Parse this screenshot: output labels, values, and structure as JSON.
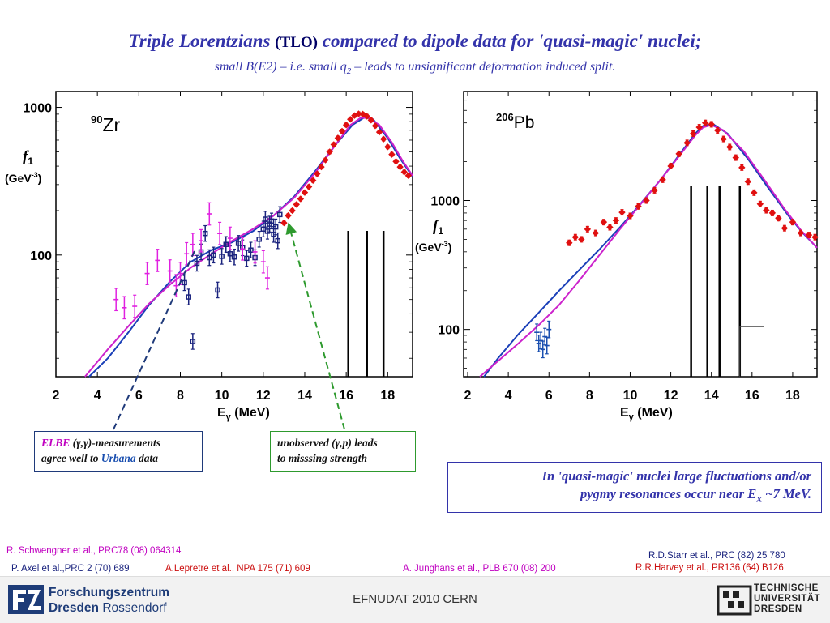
{
  "title": {
    "part1": "Triple Lorentzians",
    "tlo": "(TLO)",
    "part2": "compared to dipole data for 'quasi-magic' nuclei;",
    "subtitle_a": "small B(E2) – i.e. small q",
    "subtitle_sub": "2",
    "subtitle_b": " – leads to unsignificant deformation induced split."
  },
  "annotations": {
    "elbe_a": "ELBE",
    "elbe_b": " (γ,γ)-measurements",
    "elbe_c": "agree well to ",
    "elbe_d": "Urbana",
    "elbe_e": " data",
    "unobs_a": "unobserved (γ,p) leads",
    "unobs_b": "to misssing strength",
    "qm_a": "In 'quasi-magic' nuclei large fluctuations and/or",
    "qm_b": "pygmy resonances occur near E",
    "qm_sub": "x",
    "qm_c": " ~7 MeV."
  },
  "references": {
    "r1": "R. Schwengner et al., PRC78 (08) 064314",
    "r2": "P. Axel et al.,PRC 2 (70) 689",
    "r3": "A.Lepretre et al., NPA 175 (71) 609",
    "r4": "A. Junghans et al., PLB  670 (08) 200",
    "r5": "R.D.Starr et al., PRC (82) 25 780",
    "r6": "R.R.Harvey et al., PR136 (64) B126"
  },
  "footer": {
    "center": "EFNUDAT 2010 CERN",
    "fz_line1": "Forschungszentrum",
    "fz_line2a": "Dresden",
    "fz_line2b": "Rossendorf",
    "tu_line1": "TECHNISCHE",
    "tu_line2": "UNIVERSITÄT",
    "tu_line3": "DRESDEN"
  },
  "colors": {
    "title": "#3333aa",
    "fit_tlo": "#cc22cc",
    "fit_other": "#1a3fb8",
    "elbe_points": "#1a237e",
    "gamma_p_points": "#e01010",
    "axel_points": "#e020e0"
  },
  "chart_data": [
    {
      "type": "scatter",
      "nucleus_sup": "90",
      "nucleus": "Zr",
      "ylabel_main": "f",
      "ylabel_sub": "1",
      "ylabel_unit": "(GeV",
      "ylabel_exp": "-3",
      "ylabel_close": ")",
      "xlabel": "E",
      "xlabel_sub": "γ",
      "xlabel_unit": " (MeV)",
      "xlim": [
        2,
        19.2
      ],
      "ylim": [
        15,
        1280
      ],
      "yscale": "log",
      "xticks": [
        2,
        4,
        6,
        8,
        10,
        12,
        14,
        16,
        18
      ],
      "yticks": [
        100,
        1000
      ],
      "resonance_lines": [
        16.1,
        17.0,
        17.8
      ],
      "series": [
        {
          "key": "elbe",
          "marker": "square",
          "color": "#1a237e",
          "points": [
            [
              8.2,
              65
            ],
            [
              8.4,
              52
            ],
            [
              8.6,
              26
            ],
            [
              8.8,
              88
            ],
            [
              9.0,
              105
            ],
            [
              9.2,
              140
            ],
            [
              9.4,
              96
            ],
            [
              9.6,
              100
            ],
            [
              9.8,
              58
            ],
            [
              10.0,
              98
            ],
            [
              10.2,
              118
            ],
            [
              10.4,
              102
            ],
            [
              10.6,
              97
            ],
            [
              10.8,
              120
            ],
            [
              11.0,
              112
            ],
            [
              11.2,
              95
            ],
            [
              11.4,
              108
            ],
            [
              11.6,
              96
            ],
            [
              11.8,
              128
            ],
            [
              12.0,
              150
            ],
            [
              12.1,
              175
            ],
            [
              12.2,
              145
            ],
            [
              12.3,
              162
            ],
            [
              12.4,
              170
            ],
            [
              12.5,
              138
            ],
            [
              12.6,
              155
            ],
            [
              12.7,
              125
            ],
            [
              12.8,
              188
            ]
          ],
          "err": 0.13
        },
        {
          "key": "axel",
          "marker": "plus",
          "color": "#e020e0",
          "points": [
            [
              4.9,
              50
            ],
            [
              5.3,
              44
            ],
            [
              5.8,
              45
            ],
            [
              6.4,
              75
            ],
            [
              6.9,
              92
            ],
            [
              7.5,
              78
            ],
            [
              7.8,
              62
            ],
            [
              8.0,
              75
            ],
            [
              8.3,
              102
            ],
            [
              8.6,
              118
            ],
            [
              9.0,
              125
            ],
            [
              9.4,
              190
            ],
            [
              9.9,
              140
            ],
            [
              10.4,
              130
            ],
            [
              11.0,
              110
            ],
            [
              11.6,
              105
            ],
            [
              12.0,
              90
            ],
            [
              12.2,
              70
            ]
          ],
          "err": 0.19
        },
        {
          "key": "gammap",
          "marker": "diamond",
          "color": "#e01010",
          "points": [
            [
              13.0,
              165
            ],
            [
              13.2,
              185
            ],
            [
              13.4,
              200
            ],
            [
              13.6,
              220
            ],
            [
              13.8,
              240
            ],
            [
              14.0,
              265
            ],
            [
              14.2,
              290
            ],
            [
              14.4,
              320
            ],
            [
              14.6,
              355
            ],
            [
              14.8,
              395
            ],
            [
              15.0,
              440
            ],
            [
              15.2,
              500
            ],
            [
              15.4,
              560
            ],
            [
              15.6,
              620
            ],
            [
              15.8,
              690
            ],
            [
              16.0,
              760
            ],
            [
              16.2,
              830
            ],
            [
              16.4,
              880
            ],
            [
              16.6,
              905
            ],
            [
              16.8,
              900
            ],
            [
              17.0,
              870
            ],
            [
              17.2,
              820
            ],
            [
              17.4,
              750
            ],
            [
              17.6,
              680
            ],
            [
              17.8,
              610
            ],
            [
              18.0,
              540
            ],
            [
              18.2,
              480
            ],
            [
              18.4,
              430
            ],
            [
              18.6,
              395
            ],
            [
              18.8,
              365
            ],
            [
              19.0,
              345
            ]
          ],
          "err": 0.03
        }
      ],
      "fits": [
        {
          "key": "blue",
          "color": "#1a3fb8",
          "points": [
            [
              3.6,
              15
            ],
            [
              4.5,
              20
            ],
            [
              5.5,
              30
            ],
            [
              6.5,
              46
            ],
            [
              7.5,
              66
            ],
            [
              8.5,
              90
            ],
            [
              9.5,
              108
            ],
            [
              10.5,
              122
            ],
            [
              11.5,
              145
            ],
            [
              12.5,
              185
            ],
            [
              13.5,
              250
            ],
            [
              14.5,
              370
            ],
            [
              15.5,
              560
            ],
            [
              16.3,
              760
            ],
            [
              16.9,
              860
            ],
            [
              17.3,
              830
            ],
            [
              18.0,
              620
            ],
            [
              18.6,
              450
            ],
            [
              19.2,
              340
            ]
          ]
        },
        {
          "key": "magenta",
          "color": "#cc22cc",
          "points": [
            [
              3.4,
              15
            ],
            [
              4.5,
              23
            ],
            [
              5.5,
              33
            ],
            [
              6.5,
              47
            ],
            [
              7.5,
              63
            ],
            [
              8.5,
              82
            ],
            [
              9.5,
              102
            ],
            [
              10.5,
              125
            ],
            [
              11.5,
              150
            ],
            [
              12.5,
              185
            ],
            [
              13.5,
              245
            ],
            [
              14.5,
              360
            ],
            [
              15.5,
              560
            ],
            [
              16.2,
              760
            ],
            [
              16.7,
              850
            ],
            [
              17.1,
              845
            ],
            [
              17.6,
              760
            ],
            [
              18.2,
              580
            ],
            [
              18.7,
              440
            ],
            [
              19.2,
              345
            ]
          ]
        }
      ]
    },
    {
      "type": "scatter",
      "nucleus_sup": "206",
      "nucleus": "Pb",
      "ylabel_main": "f",
      "ylabel_sub": "1",
      "ylabel_unit": "(GeV",
      "ylabel_exp": "-3",
      "ylabel_close": ")",
      "xlabel": "E",
      "xlabel_sub": "γ",
      "xlabel_unit": " (MeV)",
      "xlim": [
        1.8,
        19.2
      ],
      "ylim": [
        43,
        7000
      ],
      "yscale": "log",
      "xticks": [
        2,
        4,
        6,
        8,
        10,
        12,
        14,
        16,
        18
      ],
      "yticks": [
        100,
        1000
      ],
      "resonance_lines": [
        13.0,
        13.8,
        14.4,
        15.4
      ],
      "threshold_step": [
        15.4,
        16.6,
        105
      ],
      "series": [
        {
          "key": "elbe",
          "marker": "plus",
          "color": "#1a4fb0",
          "points": [
            [
              5.4,
              95
            ],
            [
              5.5,
              78
            ],
            [
              5.6,
              82
            ],
            [
              5.7,
              70
            ],
            [
              5.8,
              88
            ],
            [
              5.9,
              75
            ],
            [
              6.0,
              100
            ]
          ],
          "err": 0.16
        },
        {
          "key": "gammap",
          "marker": "diamond",
          "color": "#e01010",
          "points": [
            [
              7.0,
              470
            ],
            [
              7.3,
              520
            ],
            [
              7.6,
              500
            ],
            [
              7.9,
              600
            ],
            [
              8.3,
              560
            ],
            [
              8.7,
              680
            ],
            [
              9.0,
              620
            ],
            [
              9.3,
              700
            ],
            [
              9.6,
              810
            ],
            [
              10.0,
              760
            ],
            [
              10.4,
              900
            ],
            [
              10.8,
              1000
            ],
            [
              11.2,
              1200
            ],
            [
              11.6,
              1450
            ],
            [
              12.0,
              1850
            ],
            [
              12.4,
              2300
            ],
            [
              12.8,
              2800
            ],
            [
              13.1,
              3300
            ],
            [
              13.4,
              3700
            ],
            [
              13.7,
              4000
            ],
            [
              14.0,
              3900
            ],
            [
              14.3,
              3500
            ],
            [
              14.6,
              3000
            ],
            [
              14.9,
              2600
            ],
            [
              15.2,
              2150
            ],
            [
              15.5,
              1800
            ],
            [
              15.8,
              1400
            ],
            [
              16.1,
              1150
            ],
            [
              16.4,
              940
            ],
            [
              16.7,
              840
            ],
            [
              17.0,
              800
            ],
            [
              17.3,
              730
            ],
            [
              17.6,
              610
            ],
            [
              18.0,
              680
            ],
            [
              18.4,
              560
            ],
            [
              18.8,
              540
            ],
            [
              19.1,
              520
            ]
          ],
          "err": 0.05
        }
      ],
      "fits": [
        {
          "key": "blue",
          "color": "#1a3fb8",
          "points": [
            [
              2.8,
              43
            ],
            [
              3.5,
              60
            ],
            [
              4.5,
              92
            ],
            [
              5.5,
              135
            ],
            [
              6.5,
              200
            ],
            [
              7.5,
              290
            ],
            [
              8.5,
              420
            ],
            [
              9.5,
              620
            ],
            [
              10.5,
              940
            ],
            [
              11.5,
              1450
            ],
            [
              12.5,
              2350
            ],
            [
              13.2,
              3300
            ],
            [
              13.6,
              3800
            ],
            [
              14.1,
              3900
            ],
            [
              14.8,
              3300
            ],
            [
              15.8,
              2100
            ],
            [
              16.8,
              1250
            ],
            [
              17.8,
              760
            ],
            [
              18.5,
              560
            ],
            [
              19.2,
              430
            ]
          ]
        },
        {
          "key": "magenta",
          "color": "#cc22cc",
          "points": [
            [
              2.6,
              43
            ],
            [
              3.5,
              57
            ],
            [
              4.5,
              78
            ],
            [
              5.5,
              108
            ],
            [
              6.5,
              155
            ],
            [
              7.5,
              240
            ],
            [
              8.5,
              380
            ],
            [
              9.5,
              600
            ],
            [
              10.5,
              930
            ],
            [
              11.5,
              1450
            ],
            [
              12.5,
              2300
            ],
            [
              13.2,
              3200
            ],
            [
              13.6,
              3700
            ],
            [
              14.0,
              3850
            ],
            [
              14.6,
              3500
            ],
            [
              15.6,
              2400
            ],
            [
              16.6,
              1450
            ],
            [
              17.6,
              860
            ],
            [
              18.4,
              590
            ],
            [
              19.2,
              430
            ]
          ]
        }
      ]
    }
  ]
}
